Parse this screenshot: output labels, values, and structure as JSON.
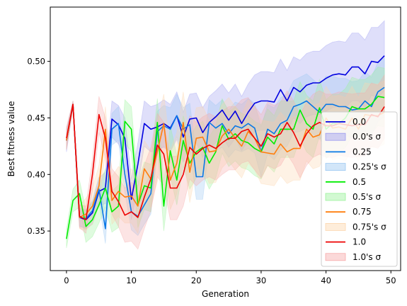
{
  "chart_data": {
    "type": "line",
    "title": "",
    "xlabel": "Generation",
    "ylabel": "Best fitness value",
    "xlim": [
      -2.5,
      51.5
    ],
    "ylim": [
      0.315,
      0.548
    ],
    "xticks": [
      0,
      10,
      20,
      30,
      40,
      50
    ],
    "yticks": [
      0.35,
      0.4,
      0.45,
      0.5
    ],
    "ytick_labels": [
      "0.35",
      "0.40",
      "0.45",
      "0.50"
    ],
    "grid": false,
    "legend_position": "lower-right",
    "x": [
      0,
      1,
      2,
      3,
      4,
      5,
      6,
      7,
      8,
      9,
      10,
      11,
      12,
      13,
      14,
      15,
      16,
      17,
      18,
      19,
      20,
      21,
      22,
      23,
      24,
      25,
      26,
      27,
      28,
      29,
      30,
      31,
      32,
      33,
      34,
      35,
      36,
      37,
      38,
      39,
      40,
      41,
      42,
      43,
      44,
      45,
      46,
      47,
      48,
      49
    ],
    "series": [
      {
        "name": "0.0",
        "sigma_name": "0.0's σ",
        "color": "#0000e0",
        "band_color": "#9c9cf0",
        "values": [
          0.43,
          0.462,
          0.362,
          0.36,
          0.366,
          0.385,
          0.388,
          0.449,
          0.444,
          0.432,
          0.378,
          0.409,
          0.445,
          0.44,
          0.442,
          0.445,
          0.441,
          0.452,
          0.433,
          0.449,
          0.45,
          0.437,
          0.446,
          0.451,
          0.457,
          0.448,
          0.456,
          0.445,
          0.455,
          0.463,
          0.465,
          0.465,
          0.464,
          0.475,
          0.465,
          0.477,
          0.473,
          0.479,
          0.481,
          0.481,
          0.485,
          0.488,
          0.489,
          0.488,
          0.495,
          0.495,
          0.489,
          0.5,
          0.499,
          0.505
        ],
        "sigma": [
          0.01,
          0.003,
          0.008,
          0.008,
          0.01,
          0.012,
          0.014,
          0.016,
          0.017,
          0.018,
          0.018,
          0.019,
          0.02,
          0.02,
          0.02,
          0.021,
          0.021,
          0.021,
          0.022,
          0.022,
          0.022,
          0.022,
          0.023,
          0.023,
          0.023,
          0.024,
          0.024,
          0.024,
          0.025,
          0.025,
          0.026,
          0.026,
          0.026,
          0.027,
          0.027,
          0.027,
          0.028,
          0.028,
          0.028,
          0.028,
          0.029,
          0.029,
          0.029,
          0.029,
          0.03,
          0.03,
          0.03,
          0.03,
          0.031,
          0.031
        ]
      },
      {
        "name": "0.25",
        "sigma_name": "0.25's σ",
        "color": "#0a78e6",
        "band_color": "#9cc8f2",
        "values": [
          0.43,
          0.462,
          0.362,
          0.361,
          0.368,
          0.387,
          0.352,
          0.44,
          0.445,
          0.4,
          0.367,
          0.363,
          0.373,
          0.383,
          0.438,
          0.443,
          0.44,
          0.452,
          0.44,
          0.444,
          0.398,
          0.398,
          0.446,
          0.441,
          0.445,
          0.436,
          0.443,
          0.441,
          0.445,
          0.441,
          0.42,
          0.44,
          0.436,
          0.445,
          0.448,
          0.46,
          0.462,
          0.465,
          0.46,
          0.455,
          0.462,
          0.462,
          0.46,
          0.46,
          0.457,
          0.458,
          0.465,
          0.46,
          0.473,
          0.477
        ],
        "sigma": [
          0.008,
          0.003,
          0.008,
          0.008,
          0.009,
          0.011,
          0.013,
          0.014,
          0.015,
          0.016,
          0.016,
          0.017,
          0.017,
          0.018,
          0.018,
          0.018,
          0.019,
          0.019,
          0.019,
          0.019,
          0.02,
          0.02,
          0.02,
          0.02,
          0.021,
          0.021,
          0.021,
          0.021,
          0.022,
          0.022,
          0.022,
          0.022,
          0.023,
          0.023,
          0.023,
          0.023,
          0.024,
          0.024,
          0.024,
          0.024,
          0.025,
          0.025,
          0.025,
          0.025,
          0.025,
          0.025,
          0.026,
          0.026,
          0.026,
          0.026
        ]
      },
      {
        "name": "0.5",
        "sigma_name": "0.5's σ",
        "color": "#00ee00",
        "band_color": "#9cf29c",
        "values": [
          0.343,
          0.377,
          0.383,
          0.354,
          0.36,
          0.373,
          0.388,
          0.367,
          0.372,
          0.447,
          0.44,
          0.373,
          0.39,
          0.388,
          0.446,
          0.372,
          0.421,
          0.395,
          0.43,
          0.41,
          0.42,
          0.424,
          0.41,
          0.42,
          0.443,
          0.431,
          0.436,
          0.43,
          0.428,
          0.423,
          0.42,
          0.433,
          0.427,
          0.44,
          0.44,
          0.44,
          0.457,
          0.445,
          0.44,
          0.459,
          0.44,
          0.445,
          0.445,
          0.45,
          0.46,
          0.458,
          0.458,
          0.462,
          0.469,
          0.468
        ],
        "sigma": [
          0.008,
          0.01,
          0.012,
          0.014,
          0.015,
          0.016,
          0.017,
          0.018,
          0.019,
          0.019,
          0.02,
          0.02,
          0.021,
          0.021,
          0.021,
          0.022,
          0.022,
          0.022,
          0.022,
          0.023,
          0.023,
          0.023,
          0.023,
          0.023,
          0.024,
          0.024,
          0.024,
          0.024,
          0.024,
          0.024,
          0.024,
          0.025,
          0.025,
          0.025,
          0.025,
          0.025,
          0.025,
          0.025,
          0.025,
          0.025,
          0.026,
          0.026,
          0.026,
          0.026,
          0.026,
          0.026,
          0.026,
          0.026,
          0.026,
          0.026
        ]
      },
      {
        "name": "0.75",
        "sigma_name": "0.75's σ",
        "color": "#ff7f0e",
        "band_color": "#fcd6ae",
        "values": [
          0.43,
          0.462,
          0.362,
          0.365,
          0.372,
          0.39,
          0.44,
          0.377,
          0.385,
          0.38,
          0.381,
          0.372,
          0.405,
          0.396,
          0.42,
          0.445,
          0.395,
          0.41,
          0.446,
          0.402,
          0.432,
          0.433,
          0.42,
          0.421,
          0.434,
          0.44,
          0.432,
          0.425,
          0.438,
          0.432,
          0.42,
          0.419,
          0.418,
          0.427,
          0.42,
          0.423,
          0.423,
          0.44,
          0.433,
          0.435,
          0.45,
          0.441,
          0.442,
          0.44,
          0.45,
          0.44,
          0.453,
          0.452,
          0.452,
          0.455
        ],
        "sigma": [
          0.008,
          0.003,
          0.01,
          0.014,
          0.016,
          0.018,
          0.02,
          0.021,
          0.022,
          0.023,
          0.024,
          0.024,
          0.025,
          0.025,
          0.026,
          0.026,
          0.026,
          0.027,
          0.027,
          0.027,
          0.027,
          0.027,
          0.028,
          0.028,
          0.028,
          0.028,
          0.028,
          0.028,
          0.028,
          0.028,
          0.028,
          0.028,
          0.028,
          0.028,
          0.028,
          0.028,
          0.028,
          0.028,
          0.028,
          0.028,
          0.028,
          0.028,
          0.028,
          0.028,
          0.028,
          0.028,
          0.028,
          0.028,
          0.028,
          0.028
        ]
      },
      {
        "name": "1.0",
        "sigma_name": "1.0's σ",
        "color": "#ee0000",
        "band_color": "#f7aaaa",
        "values": [
          0.432,
          0.462,
          0.363,
          0.36,
          0.4,
          0.453,
          0.432,
          0.385,
          0.376,
          0.364,
          0.367,
          0.362,
          0.38,
          0.396,
          0.426,
          0.418,
          0.388,
          0.388,
          0.4,
          0.424,
          0.418,
          0.423,
          0.426,
          0.423,
          0.428,
          0.432,
          0.432,
          0.438,
          0.44,
          0.432,
          0.425,
          0.436,
          0.433,
          0.436,
          0.446,
          0.437,
          0.425,
          0.436,
          0.443,
          0.446,
          0.443,
          0.443,
          0.445,
          0.444,
          0.443,
          0.444,
          0.444,
          0.453,
          0.451,
          0.46
        ],
        "sigma": [
          0.01,
          0.003,
          0.01,
          0.012,
          0.014,
          0.016,
          0.018,
          0.02,
          0.022,
          0.024,
          0.026,
          0.028,
          0.028,
          0.028,
          0.028,
          0.028,
          0.028,
          0.028,
          0.028,
          0.028,
          0.028,
          0.028,
          0.028,
          0.028,
          0.028,
          0.028,
          0.028,
          0.028,
          0.028,
          0.028,
          0.028,
          0.028,
          0.028,
          0.028,
          0.028,
          0.028,
          0.028,
          0.028,
          0.028,
          0.028,
          0.028,
          0.028,
          0.028,
          0.028,
          0.028,
          0.028,
          0.028,
          0.028,
          0.028,
          0.028
        ]
      }
    ]
  }
}
